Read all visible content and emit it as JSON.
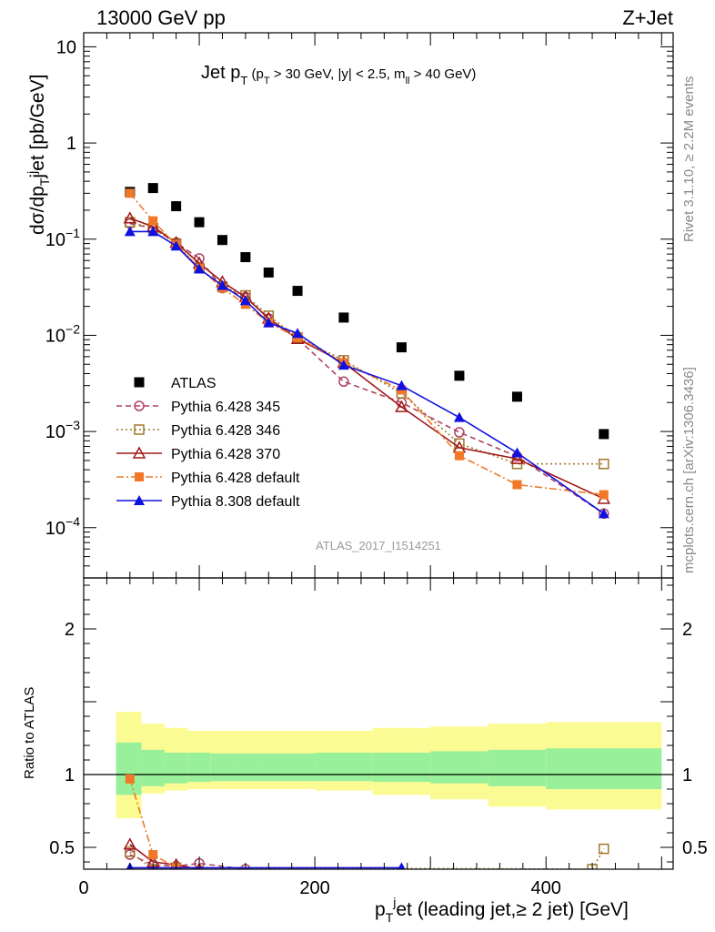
{
  "header": {
    "energy_label": "13000 GeV pp",
    "process_label": "Z+Jet"
  },
  "side_labels": {
    "rivet": "Rivet 3.1.10, ≥ 2.2M events",
    "mcplots": "mcplots.cern.ch [arXiv:1306.3436]"
  },
  "chart_data": [
    {
      "type": "scatter",
      "title": "Jet pT (pT > 30 GeV, |y| < 2.5, mll > 40 GeV)",
      "watermark": "ATLAS_2017_I1514251",
      "ylabel": "dσ/dpTjet [pb/GeV]",
      "yscale": "log",
      "ylim": [
        3e-05,
        14
      ],
      "xlim": [
        0,
        510
      ],
      "yticks": [
        "10^-4",
        "10^-3",
        "10^-2",
        "10^-1",
        "1",
        "10"
      ],
      "legend_position": "lower-left",
      "x": [
        40,
        60,
        80,
        100,
        120,
        140,
        160,
        185,
        225,
        275,
        325,
        375,
        450
      ],
      "series": [
        {
          "name": "ATLAS",
          "color": "#000000",
          "marker": "filled-square",
          "line": "none",
          "values": [
            0.31,
            0.34,
            0.22,
            0.15,
            0.098,
            0.065,
            0.045,
            0.029,
            0.0153,
            0.0075,
            0.0038,
            0.0023,
            0.00094
          ]
        },
        {
          "name": "Pythia 6.428 345",
          "color": "#b04060",
          "marker": "open-circle",
          "line": "dashed",
          "x": [
            40,
            60,
            80,
            100,
            120,
            140,
            160,
            185,
            225,
            275,
            325,
            375,
            450
          ],
          "values": [
            0.145,
            0.13,
            0.092,
            0.063,
            0.031,
            0.025,
            0.015,
            0.0092,
            0.0033,
            0.002,
            0.00098,
            0.00055,
            0.00014
          ]
        },
        {
          "name": "Pythia 6.428 346",
          "color": "#a0782c",
          "marker": "open-square",
          "line": "dotted",
          "x": [
            40,
            60,
            80,
            100,
            120,
            140,
            160,
            185,
            225,
            275,
            325,
            375,
            450
          ],
          "values": [
            0.15,
            0.13,
            0.09,
            0.05,
            0.032,
            0.026,
            0.016,
            0.0095,
            0.0055,
            0.0025,
            0.00075,
            0.00046,
            0.00046
          ]
        },
        {
          "name": "Pythia 6.428 370",
          "color": "#a01818",
          "marker": "open-triangle",
          "line": "solid",
          "x": [
            40,
            60,
            80,
            100,
            120,
            140,
            160,
            185,
            225,
            275,
            325,
            375,
            450
          ],
          "values": [
            0.165,
            0.135,
            0.092,
            0.056,
            0.036,
            0.025,
            0.015,
            0.0092,
            0.0052,
            0.0018,
            0.00068,
            0.00052,
            0.0002
          ]
        },
        {
          "name": "Pythia 6.428 default",
          "color": "#f07828",
          "marker": "filled-square",
          "line": "dash-dot",
          "x": [
            40,
            60,
            80,
            100,
            120,
            140,
            160,
            185,
            225,
            275,
            325,
            375,
            450
          ],
          "values": [
            0.3,
            0.155,
            0.087,
            0.05,
            0.031,
            0.021,
            0.0135,
            0.0095,
            0.0052,
            0.0027,
            0.00056,
            0.00028,
            0.00022
          ]
        },
        {
          "name": "Pythia 8.308 default",
          "color": "#1010e0",
          "marker": "filled-triangle",
          "line": "solid",
          "x": [
            40,
            60,
            80,
            100,
            120,
            140,
            160,
            185,
            225,
            275,
            325,
            375,
            450
          ],
          "values": [
            0.12,
            0.12,
            0.085,
            0.049,
            0.033,
            0.023,
            0.0135,
            0.0105,
            0.0049,
            0.003,
            0.0014,
            0.0006,
            0.00014
          ]
        }
      ]
    },
    {
      "type": "line",
      "ylabel": "Ratio to ATLAS",
      "xlabel": "pTjet (leading jet,≥ 2 jet) [GeV]",
      "xlim": [
        0,
        510
      ],
      "ylim": [
        0.35,
        2.35
      ],
      "xticks": [
        0,
        200,
        400
      ],
      "yticks": [
        0.5,
        1,
        2
      ],
      "reference_line": 1.0,
      "bands": {
        "x_edges": [
          28,
          50,
          70,
          90,
          110,
          130,
          150,
          170,
          200,
          250,
          300,
          350,
          400,
          500
        ],
        "inner_low": [
          0.86,
          0.92,
          0.94,
          0.95,
          0.955,
          0.955,
          0.955,
          0.955,
          0.955,
          0.95,
          0.94,
          0.92,
          0.9
        ],
        "inner_high": [
          1.22,
          1.17,
          1.15,
          1.15,
          1.145,
          1.145,
          1.145,
          1.145,
          1.15,
          1.15,
          1.16,
          1.17,
          1.18
        ],
        "outer_low": [
          0.7,
          0.87,
          0.89,
          0.9,
          0.9,
          0.9,
          0.9,
          0.9,
          0.89,
          0.86,
          0.83,
          0.78,
          0.76
        ],
        "outer_high": [
          1.43,
          1.35,
          1.32,
          1.3,
          1.3,
          1.3,
          1.3,
          1.3,
          1.3,
          1.32,
          1.33,
          1.35,
          1.36
        ],
        "inner_color": "#99f09b",
        "outer_color": "#fbfb93"
      },
      "series": [
        {
          "name": "Pythia 6.428 345",
          "color": "#b04060",
          "marker": "open-circle",
          "line": "dashed",
          "x": [
            40,
            60,
            80,
            100,
            140
          ],
          "values": [
            0.45,
            0.38,
            0.37,
            0.39,
            0.35
          ]
        },
        {
          "name": "Pythia 6.428 346",
          "color": "#a0782c",
          "marker": "open-square",
          "line": "dotted",
          "x": [
            40,
            60,
            80,
            440,
            450
          ],
          "values": [
            0.47,
            0.35,
            0.36,
            0.35,
            0.49
          ]
        },
        {
          "name": "Pythia 6.428 370",
          "color": "#a01818",
          "marker": "open-triangle",
          "line": "solid",
          "x": [
            40,
            60,
            80,
            100
          ],
          "values": [
            0.52,
            0.4,
            0.38,
            0.35
          ]
        },
        {
          "name": "Pythia 6.428 default",
          "color": "#f07828",
          "marker": "filled-square",
          "line": "dash-dot",
          "x": [
            40,
            60,
            80
          ],
          "values": [
            0.97,
            0.45,
            0.36
          ]
        },
        {
          "name": "Pythia 8.308 default",
          "color": "#1010e0",
          "marker": "filled-triangle",
          "line": "solid",
          "x": [
            40,
            275
          ],
          "values": [
            0.36,
            0.36
          ]
        }
      ]
    }
  ]
}
